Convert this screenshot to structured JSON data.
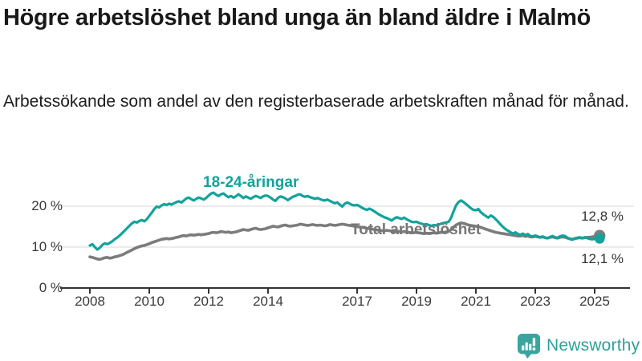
{
  "header": {
    "title": "Högre arbetslöshet bland unga än bland äldre i Malmö",
    "subtitle": "Arbetssökande som andel av den registerbaserade arbetskraften månad för månad."
  },
  "colors": {
    "young": "#12a39b",
    "total": "#7c7c7c",
    "total_label": "#767676",
    "grid": "#d9d9d9",
    "axis": "#333333",
    "value_label": "#333333",
    "brand": "#2ea19b"
  },
  "chart_data": {
    "type": "line",
    "title": "Högre arbetslöshet bland unga än bland äldre i Malmö",
    "subtitle": "Arbetssökande som andel av den registerbaserade arbetskraften månad för månad.",
    "ylabel": "",
    "xlabel": "",
    "ylim": [
      0,
      26
    ],
    "xlim": [
      2008,
      2025.4
    ],
    "grid": "horizontal",
    "legend_position": "inline-labels",
    "x_start": 2008,
    "x_step": 0.0833,
    "x_unit": "monthly (year fraction)",
    "yticks": [
      {
        "value": 0,
        "label": "0 %"
      },
      {
        "value": 10,
        "label": "10 %"
      },
      {
        "value": 20,
        "label": "20 %"
      }
    ],
    "xticks": [
      {
        "year": 2008,
        "label": "2008"
      },
      {
        "year": 2010,
        "label": "2010"
      },
      {
        "year": 2012,
        "label": "2012"
      },
      {
        "year": 2014,
        "label": "2014"
      },
      {
        "year": 2017,
        "label": "2017"
      },
      {
        "year": 2019,
        "label": "2019"
      },
      {
        "year": 2021,
        "label": "2021"
      },
      {
        "year": 2023,
        "label": "2023"
      },
      {
        "year": 2025,
        "label": "2025"
      }
    ],
    "series": [
      {
        "name": "Total arbetslöshet",
        "color": "#7c7c7c",
        "stroke_width": 3.6,
        "dot_radius": 7.2,
        "end_value": 12.8,
        "end_label": "12,8 %",
        "values": [
          7.6,
          7.5,
          7.3,
          7.1,
          7.0,
          7.2,
          7.4,
          7.5,
          7.3,
          7.4,
          7.6,
          7.7,
          7.9,
          8.1,
          8.4,
          8.7,
          9.0,
          9.3,
          9.6,
          9.9,
          10.1,
          10.3,
          10.4,
          10.6,
          10.8,
          11.1,
          11.3,
          11.5,
          11.7,
          11.9,
          12.0,
          12.1,
          12.0,
          12.1,
          12.2,
          12.4,
          12.5,
          12.7,
          12.8,
          12.7,
          12.9,
          13.0,
          12.9,
          13.0,
          13.1,
          13.0,
          13.1,
          13.2,
          13.3,
          13.5,
          13.6,
          13.5,
          13.6,
          13.8,
          13.7,
          13.6,
          13.7,
          13.5,
          13.6,
          13.7,
          13.9,
          14.1,
          14.3,
          14.2,
          14.1,
          14.3,
          14.5,
          14.6,
          14.4,
          14.3,
          14.4,
          14.5,
          14.7,
          14.9,
          15.1,
          15.0,
          14.9,
          15.1,
          15.3,
          15.4,
          15.2,
          15.1,
          15.2,
          15.3,
          15.4,
          15.6,
          15.5,
          15.4,
          15.3,
          15.4,
          15.5,
          15.4,
          15.3,
          15.4,
          15.3,
          15.2,
          15.3,
          15.5,
          15.4,
          15.3,
          15.4,
          15.5,
          15.6,
          15.5,
          15.4,
          15.3,
          15.2,
          15.1,
          15.0,
          14.9,
          14.8,
          14.7,
          14.6,
          14.5,
          14.4,
          14.3,
          14.2,
          14.1,
          14.0,
          14.0,
          14.1,
          14.0,
          13.9,
          13.8,
          13.9,
          13.8,
          13.7,
          13.8,
          13.7,
          13.6,
          13.5,
          13.5,
          13.6,
          13.5,
          13.4,
          13.3,
          13.4,
          13.3,
          13.4,
          13.5,
          13.4,
          13.5,
          13.6,
          13.6,
          13.7,
          13.8,
          14.3,
          14.9,
          15.4,
          15.7,
          15.9,
          15.8,
          15.6,
          15.4,
          15.3,
          15.2,
          15.1,
          15.0,
          14.8,
          14.6,
          14.4,
          14.2,
          14.0,
          13.8,
          13.6,
          13.5,
          13.4,
          13.3,
          13.2,
          13.1,
          13.0,
          12.9,
          12.8,
          12.7,
          12.7,
          12.8,
          12.6,
          12.7,
          12.5,
          12.5,
          12.6,
          12.5,
          12.4,
          12.5,
          12.3,
          12.2,
          12.4,
          12.5,
          12.3,
          12.2,
          12.4,
          12.5,
          12.4,
          12.2,
          12.0,
          11.9,
          12.1,
          12.2,
          12.3,
          12.2,
          12.3,
          12.4,
          12.4,
          12.5,
          12.6,
          12.7,
          12.8
        ]
      },
      {
        "name": "18-24-åringar",
        "color": "#12a39b",
        "stroke_width": 3.2,
        "dot_radius": 6.4,
        "end_value": 12.1,
        "end_label": "12,1 %",
        "values": [
          10.4,
          10.7,
          10.0,
          9.4,
          9.8,
          10.5,
          10.9,
          10.7,
          11.0,
          11.4,
          11.9,
          12.3,
          12.8,
          13.4,
          14.0,
          14.6,
          15.2,
          15.8,
          16.2,
          16.0,
          16.4,
          16.6,
          16.3,
          16.8,
          17.6,
          18.4,
          19.3,
          19.9,
          19.7,
          20.2,
          20.5,
          20.3,
          20.6,
          20.4,
          20.7,
          21.0,
          21.2,
          20.9,
          21.4,
          21.9,
          22.1,
          21.7,
          21.4,
          21.8,
          22.1,
          21.9,
          21.6,
          22.0,
          22.6,
          23.1,
          23.3,
          22.8,
          22.5,
          22.9,
          23.1,
          22.6,
          22.2,
          22.5,
          22.1,
          22.4,
          22.9,
          22.5,
          22.0,
          22.4,
          22.1,
          21.8,
          22.2,
          22.5,
          22.3,
          22.0,
          22.4,
          22.6,
          22.5,
          22.1,
          21.6,
          21.3,
          22.0,
          22.4,
          22.2,
          21.9,
          21.5,
          21.9,
          22.3,
          22.5,
          22.8,
          22.9,
          22.5,
          22.3,
          22.5,
          22.2,
          22.0,
          21.8,
          22.0,
          21.7,
          21.5,
          21.4,
          21.6,
          21.3,
          21.0,
          20.7,
          20.9,
          20.4,
          19.9,
          20.6,
          20.9,
          20.6,
          20.3,
          20.2,
          20.3,
          20.0,
          19.6,
          19.3,
          19.1,
          19.4,
          19.1,
          18.7,
          18.3,
          17.9,
          17.6,
          17.3,
          17.1,
          16.8,
          16.5,
          17.0,
          17.3,
          17.1,
          16.9,
          17.2,
          16.8,
          16.5,
          16.2,
          16.1,
          16.2,
          15.9,
          15.7,
          15.5,
          15.6,
          15.4,
          15.2,
          15.4,
          15.3,
          15.5,
          15.7,
          15.9,
          16.0,
          16.2,
          17.2,
          18.8,
          20.2,
          21.0,
          21.4,
          21.0,
          20.5,
          20.0,
          19.5,
          19.1,
          19.0,
          19.3,
          18.5,
          18.0,
          17.6,
          17.2,
          17.7,
          17.4,
          16.8,
          16.2,
          15.5,
          14.9,
          14.4,
          14.0,
          13.6,
          13.3,
          13.6,
          13.2,
          13.0,
          13.3,
          12.9,
          13.2,
          12.7,
          12.6,
          12.8,
          12.6,
          12.4,
          12.6,
          12.3,
          12.2,
          12.5,
          12.7,
          12.4,
          12.3,
          12.6,
          12.8,
          12.7,
          12.3,
          12.0,
          11.8,
          12.1,
          12.3,
          12.4,
          12.2,
          12.4,
          12.2,
          12.0,
          11.9,
          12.0,
          12.2,
          12.1
        ]
      }
    ]
  },
  "footer": {
    "brand": "Newsworthy"
  }
}
